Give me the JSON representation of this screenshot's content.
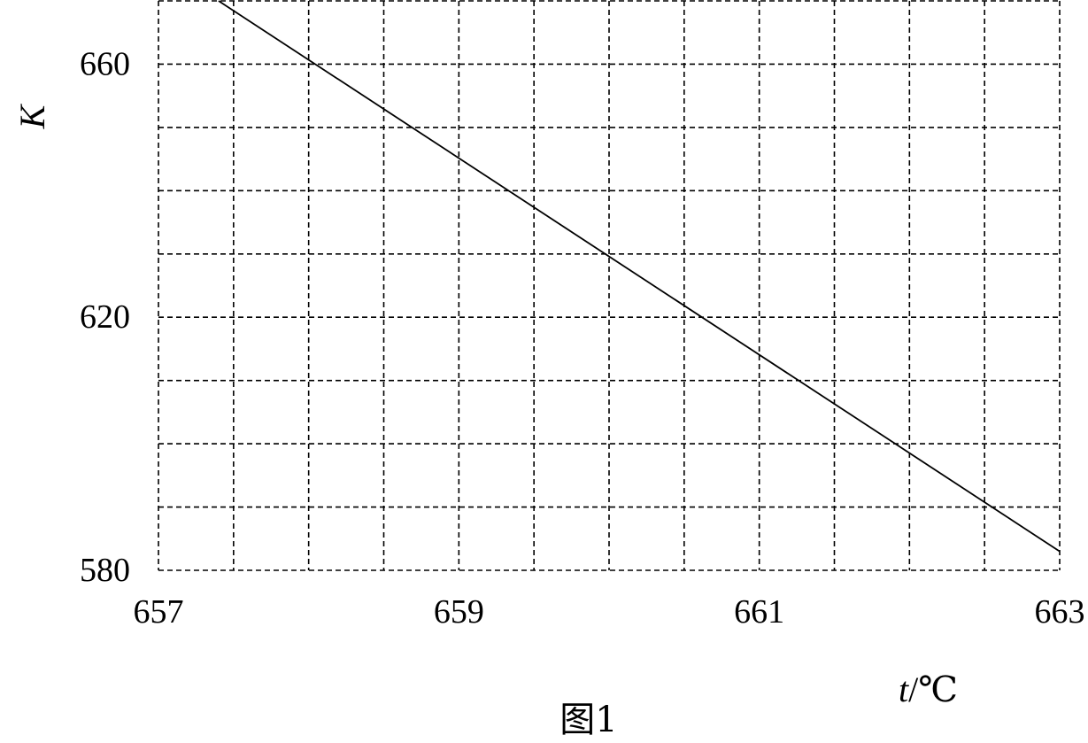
{
  "chart_data": {
    "type": "line",
    "xlabel_var": "t",
    "xlabel_unit": "/℃",
    "ylabel": "K",
    "caption": "图1",
    "xlim": [
      657,
      663
    ],
    "ylim": [
      580,
      670
    ],
    "x_ticks": [
      657,
      659,
      661,
      663
    ],
    "y_ticks": [
      580,
      620,
      660
    ],
    "x_grid_step": 0.5,
    "y_grid_step": 10,
    "grid": true,
    "series": [
      {
        "x": [
          657.4,
          663.0
        ],
        "y": [
          670.0,
          583.0
        ]
      }
    ]
  }
}
